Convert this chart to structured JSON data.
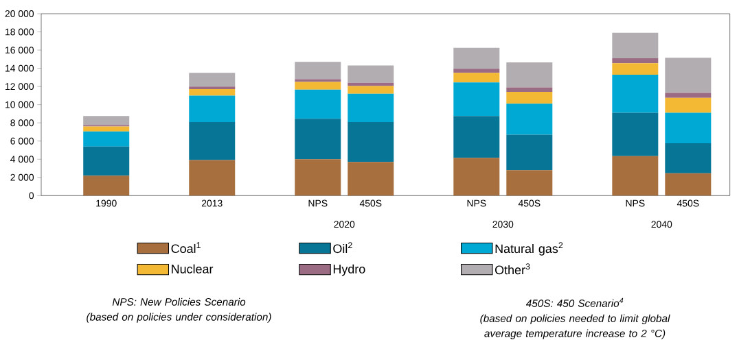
{
  "chart_data": {
    "type": "bar",
    "stacked": true,
    "categories": [
      "1990",
      "2013",
      "NPS",
      "450S",
      "NPS",
      "450S",
      "NPS",
      "450S"
    ],
    "series": [
      {
        "name": "Coal$^{1}$",
        "color": "#a86f3e",
        "values": [
          2200,
          3900,
          4000,
          3700,
          4150,
          2800,
          4350,
          2450
        ]
      },
      {
        "name": "Oil$^{2}$",
        "color": "#067596",
        "values": [
          3200,
          4200,
          4450,
          4400,
          4600,
          3900,
          4750,
          3300
        ]
      },
      {
        "name": "Natural gas$^{2}$",
        "color": "#00a9d4",
        "values": [
          1650,
          2900,
          3200,
          3100,
          3700,
          3400,
          4200,
          3350
        ]
      },
      {
        "name": "Nuclear",
        "color": "#f3b934",
        "values": [
          550,
          700,
          850,
          850,
          1050,
          1300,
          1250,
          1650
        ]
      },
      {
        "name": "Hydro",
        "color": "#9b6b84",
        "values": [
          150,
          300,
          300,
          350,
          450,
          500,
          550,
          550
        ]
      },
      {
        "name": "Other$^{3}$",
        "color": "#b1adb0",
        "values": [
          1000,
          1500,
          1900,
          1900,
          2300,
          2750,
          2800,
          3850
        ]
      }
    ],
    "ylim": [
      0,
      20000
    ],
    "yticks": [
      0,
      {
        "value": 2000,
        "label": "2 000"
      },
      {
        "value": 4000,
        "label": "4 000"
      },
      {
        "value": 6000,
        "label": "6 000"
      },
      {
        "value": 8000,
        "label": "8 000"
      },
      {
        "value": 10000,
        "label": "10 000"
      },
      {
        "value": 12000,
        "label": "12 000"
      },
      {
        "value": 14000,
        "label": "14 000"
      },
      {
        "value": 16000,
        "label": "16 000"
      },
      {
        "value": 18000,
        "label": "18 000"
      },
      {
        "value": 20000,
        "label": "20 000"
      }
    ],
    "legend": "bottom",
    "annotations": [
      "2020",
      "2030",
      "2040",
      "NPS: New Policies Scenario",
      "(based on policies under consideration)",
      "450S: 450 Scenario$^{4}$",
      "(based on policies needed to limit global average temperature increase to 2 °C)"
    ]
  }
}
